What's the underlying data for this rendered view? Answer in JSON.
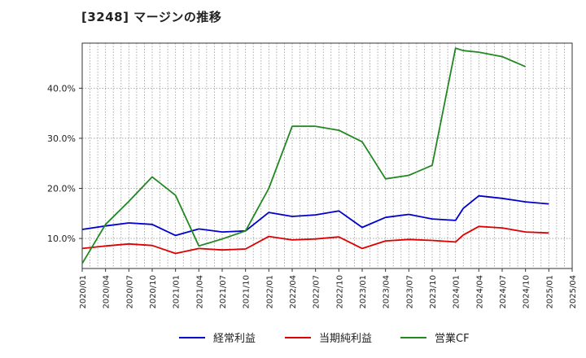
{
  "chart_data": {
    "type": "line",
    "title": "[3248]  マージンの推移",
    "xlabel": "",
    "ylabel": "",
    "x": [
      "2020/01",
      "2020/04",
      "2020/07",
      "2020/10",
      "2021/01",
      "2021/04",
      "2021/07",
      "2021/10",
      "2022/01",
      "2022/04",
      "2022/07",
      "2022/10",
      "2023/01",
      "2023/04",
      "2023/07",
      "2023/10",
      "2024/01",
      "2024/04",
      "2024/07",
      "2024/10",
      "2025/01",
      "2025/04"
    ],
    "ylim": [
      4.0,
      49.0
    ],
    "yticks": [
      10,
      20,
      30,
      40
    ],
    "ytick_labels": [
      "10.0%",
      "20.0%",
      "30.0%",
      "40.0%"
    ],
    "grid": true,
    "legend_position": "bottom",
    "series": [
      {
        "name": "経常利益",
        "color": "#0000cc",
        "points": [
          [
            "2020/01",
            11.8
          ],
          [
            "2020/04",
            12.5
          ],
          [
            "2020/07",
            13.1
          ],
          [
            "2020/10",
            12.8
          ],
          [
            "2021/01",
            10.6
          ],
          [
            "2021/04",
            11.9
          ],
          [
            "2021/07",
            11.3
          ],
          [
            "2021/10",
            11.5
          ],
          [
            "2022/01",
            15.2
          ],
          [
            "2022/04",
            14.4
          ],
          [
            "2022/07",
            14.7
          ],
          [
            "2022/10",
            15.5
          ],
          [
            "2023/01",
            12.2
          ],
          [
            "2023/04",
            14.2
          ],
          [
            "2023/07",
            14.8
          ],
          [
            "2023/10",
            13.9
          ],
          [
            "2024/01",
            13.6
          ],
          [
            "2024/02",
            16.0
          ],
          [
            "2024/04",
            18.5
          ],
          [
            "2024/07",
            18.0
          ],
          [
            "2024/10",
            17.3
          ],
          [
            "2025/01",
            16.9
          ]
        ]
      },
      {
        "name": "当期純利益",
        "color": "#dd0000",
        "points": [
          [
            "2020/01",
            8.0
          ],
          [
            "2020/04",
            8.5
          ],
          [
            "2020/07",
            8.9
          ],
          [
            "2020/10",
            8.6
          ],
          [
            "2021/01",
            7.0
          ],
          [
            "2021/04",
            8.0
          ],
          [
            "2021/07",
            7.7
          ],
          [
            "2021/10",
            7.9
          ],
          [
            "2022/01",
            10.4
          ],
          [
            "2022/04",
            9.7
          ],
          [
            "2022/07",
            9.9
          ],
          [
            "2022/10",
            10.3
          ],
          [
            "2023/01",
            8.0
          ],
          [
            "2023/04",
            9.5
          ],
          [
            "2023/07",
            9.8
          ],
          [
            "2023/10",
            9.6
          ],
          [
            "2024/01",
            9.3
          ],
          [
            "2024/02",
            10.7
          ],
          [
            "2024/04",
            12.4
          ],
          [
            "2024/07",
            12.1
          ],
          [
            "2024/10",
            11.3
          ],
          [
            "2025/01",
            11.1
          ]
        ]
      },
      {
        "name": "営業CF",
        "color": "#228822",
        "points": [
          [
            "2020/01",
            5.0
          ],
          [
            "2020/04",
            12.8
          ],
          [
            "2020/07",
            17.4
          ],
          [
            "2020/10",
            22.3
          ],
          [
            "2021/01",
            18.6
          ],
          [
            "2021/04",
            8.5
          ],
          [
            "2021/07",
            9.9
          ],
          [
            "2021/10",
            11.5
          ],
          [
            "2022/01",
            20.0
          ],
          [
            "2022/04",
            32.4
          ],
          [
            "2022/07",
            32.4
          ],
          [
            "2022/10",
            31.6
          ],
          [
            "2023/01",
            29.3
          ],
          [
            "2023/04",
            21.9
          ],
          [
            "2023/07",
            22.6
          ],
          [
            "2023/10",
            24.6
          ],
          [
            "2024/01",
            48.0
          ],
          [
            "2024/02",
            47.5
          ],
          [
            "2024/04",
            47.2
          ],
          [
            "2024/07",
            46.3
          ],
          [
            "2024/10",
            44.3
          ]
        ]
      }
    ]
  }
}
